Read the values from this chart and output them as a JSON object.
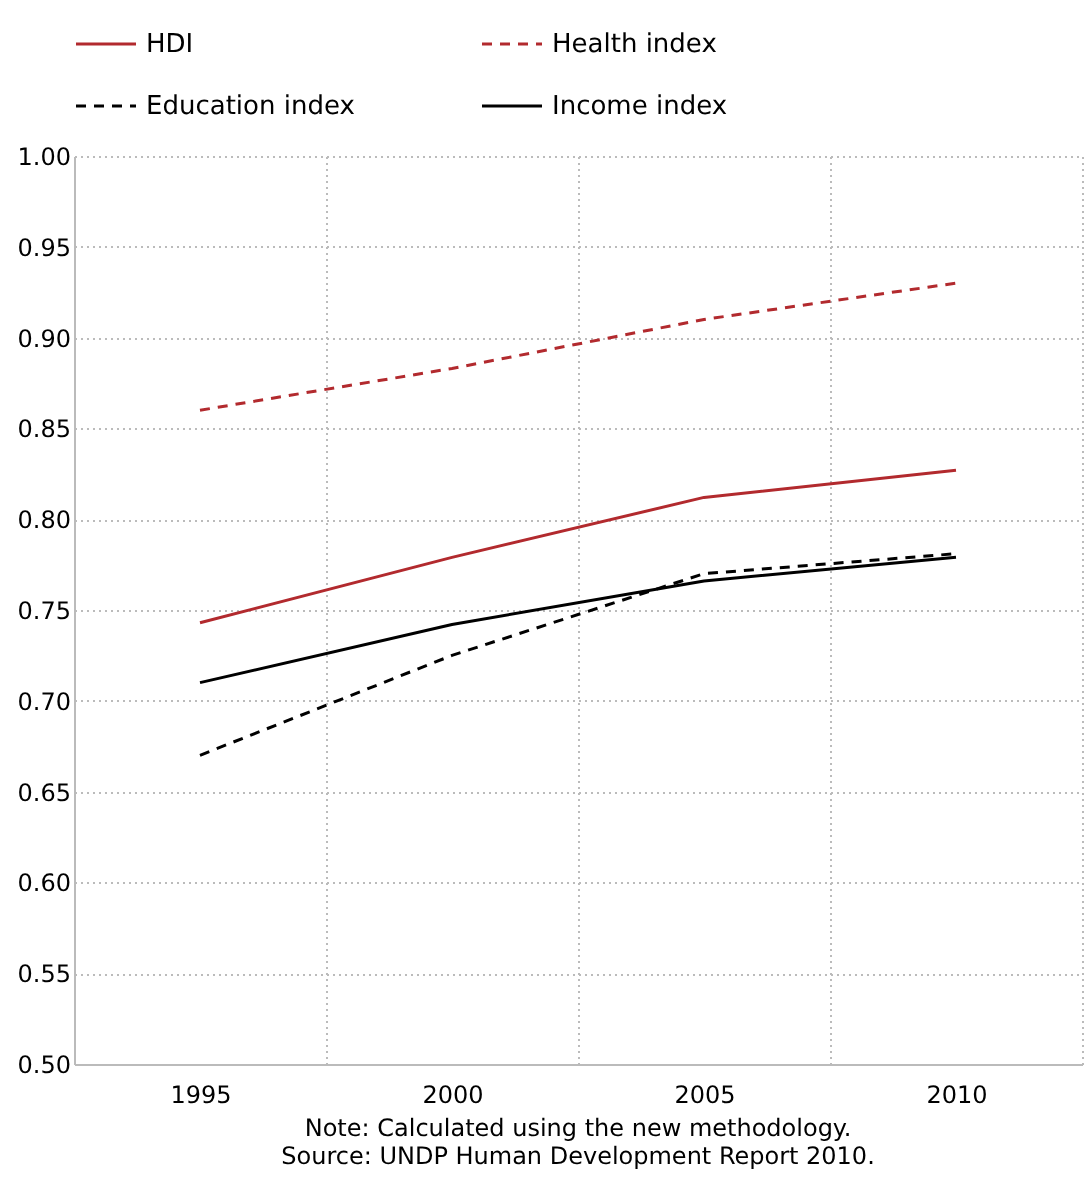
{
  "chart_data": {
    "type": "line",
    "categories": [
      "1995",
      "2000",
      "2005",
      "2010"
    ],
    "series": [
      {
        "name": "HDI",
        "color": "#b22a2e",
        "line_style": "solid",
        "values": [
          0.743,
          0.779,
          0.812,
          0.827
        ]
      },
      {
        "name": "Health index",
        "color": "#b22a2e",
        "line_style": "dashed",
        "values": [
          0.86,
          0.883,
          0.91,
          0.93
        ]
      },
      {
        "name": "Education index",
        "color": "#000000",
        "line_style": "dashed",
        "values": [
          0.67,
          0.725,
          0.77,
          0.781
        ]
      },
      {
        "name": "Income index",
        "color": "#000000",
        "line_style": "solid",
        "values": [
          0.71,
          0.742,
          0.766,
          0.779
        ]
      }
    ],
    "ylim": [
      0.5,
      1.0
    ],
    "yticks": [
      {
        "value": 0.5,
        "label": "0.50"
      },
      {
        "value": 0.55,
        "label": "0.55"
      },
      {
        "value": 0.6,
        "label": "0.60"
      },
      {
        "value": 0.65,
        "label": "0.65"
      },
      {
        "value": 0.7,
        "label": "0.70"
      },
      {
        "value": 0.75,
        "label": "0.75"
      },
      {
        "value": 0.8,
        "label": "0.80"
      },
      {
        "value": 0.85,
        "label": "0.85"
      },
      {
        "value": 0.9,
        "label": "0.90"
      },
      {
        "value": 0.95,
        "label": "0.95"
      },
      {
        "value": 1.0,
        "label": "1.00"
      }
    ],
    "grid": true,
    "legend": "top",
    "marker": "none",
    "annotations": [
      "Note: Calculated using the new methodology.",
      "Source: UNDP Human Development Report 2010."
    ]
  }
}
